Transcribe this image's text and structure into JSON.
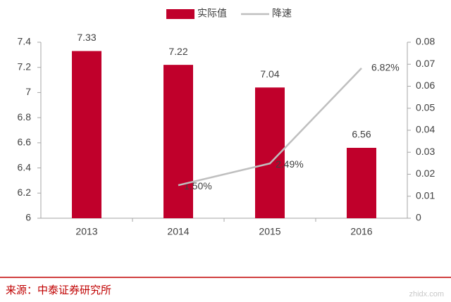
{
  "chart_data": {
    "type": "bar-line",
    "categories": [
      "2013",
      "2014",
      "2015",
      "2016"
    ],
    "series": [
      {
        "name": "实际值",
        "type": "bar",
        "color": "#c0002b",
        "values": [
          7.33,
          7.22,
          7.04,
          6.56
        ]
      },
      {
        "name": "降速",
        "type": "line",
        "axis": "y2",
        "color": "#bfbfbf",
        "values": [
          null,
          0.015,
          0.0249,
          0.0682
        ],
        "value_labels": [
          null,
          "1.50%",
          "2.49%",
          "6.82%"
        ]
      }
    ],
    "ylim": [
      6,
      7.4
    ],
    "yticks": [
      6,
      6.2,
      6.4,
      6.6,
      6.8,
      7,
      7.2,
      7.4
    ],
    "y2lim": [
      0,
      0.08
    ],
    "y2ticks": [
      0,
      0.01,
      0.02,
      0.03,
      0.04,
      0.05,
      0.06,
      0.07,
      0.08
    ],
    "legend": "top",
    "source": "来源：中泰证券研究所",
    "watermark": "zhidx.com"
  }
}
